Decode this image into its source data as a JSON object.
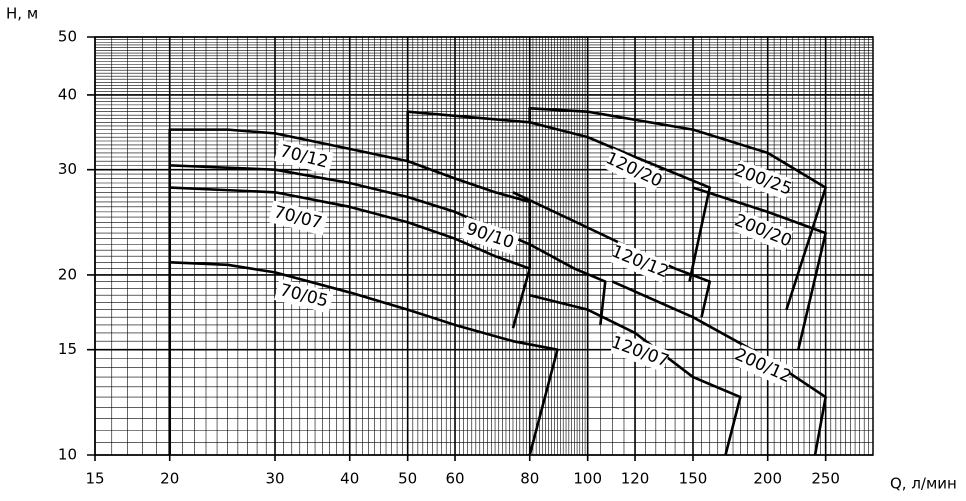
{
  "chart_data": {
    "type": "line",
    "x_label": "Q, л/мин",
    "y_label": "H, м",
    "log_x": true,
    "log_y": true,
    "grid": true,
    "color": "#000",
    "xlim": [
      15,
      300
    ],
    "ylim": [
      10,
      50
    ],
    "xticks": [
      15,
      20,
      30,
      40,
      50,
      60,
      80,
      100,
      120,
      150,
      200,
      250
    ],
    "yticks": [
      10,
      15,
      20,
      30,
      40,
      50
    ],
    "series": [
      {
        "name": "70/05",
        "x": [
          20,
          25,
          30,
          40,
          50,
          60,
          75,
          89,
          80
        ],
        "values": [
          21,
          20.8,
          20.2,
          18.7,
          17.5,
          16.5,
          15.5,
          15,
          10
        ]
      },
      {
        "name": "70/07",
        "x": [
          20,
          30,
          40,
          50,
          60,
          70,
          80,
          75
        ],
        "values": [
          28,
          27.5,
          26,
          24.5,
          23,
          21.5,
          20.5,
          16.3
        ]
      },
      {
        "name": "70/12",
        "x": [
          20,
          20,
          25,
          30,
          40,
          50,
          60,
          70,
          80,
          80
        ],
        "values": [
          10,
          35,
          35,
          34.5,
          32.5,
          31,
          29,
          27.5,
          26.5,
          20.5
        ]
      },
      {
        "name": "90/10",
        "x": [
          20,
          30,
          40,
          50,
          60,
          80,
          95,
          107,
          105
        ],
        "values": [
          30.5,
          30,
          28.5,
          27,
          25.5,
          22.5,
          20.5,
          19.5,
          16.5
        ]
      },
      {
        "name": "120/07",
        "x": [
          80,
          100,
          120,
          150,
          180,
          170
        ],
        "values": [
          18.5,
          17.5,
          16,
          13.5,
          12.5,
          10
        ]
      },
      {
        "name": "120/12",
        "x": [
          75,
          100,
          120,
          140,
          160,
          155
        ],
        "values": [
          27.5,
          24,
          22,
          20.5,
          19.5,
          17
        ]
      },
      {
        "name": "120/20",
        "x": [
          50,
          50,
          80,
          100,
          120,
          160,
          148
        ],
        "values": [
          31,
          37.5,
          36,
          34,
          31.5,
          28,
          19.5
        ]
      },
      {
        "name": "200/25",
        "x": [
          80,
          80,
          100,
          150,
          200,
          250,
          215
        ],
        "values": [
          36,
          38,
          37.5,
          35,
          32,
          28,
          17.5
        ]
      },
      {
        "name": "200/20",
        "x": [
          150,
          200,
          250,
          225
        ],
        "values": [
          28,
          25.5,
          23.5,
          15
        ]
      },
      {
        "name": "200/12",
        "x": [
          110,
          150,
          200,
          250,
          240
        ],
        "values": [
          19.5,
          17,
          14.5,
          12.5,
          10
        ]
      }
    ]
  }
}
